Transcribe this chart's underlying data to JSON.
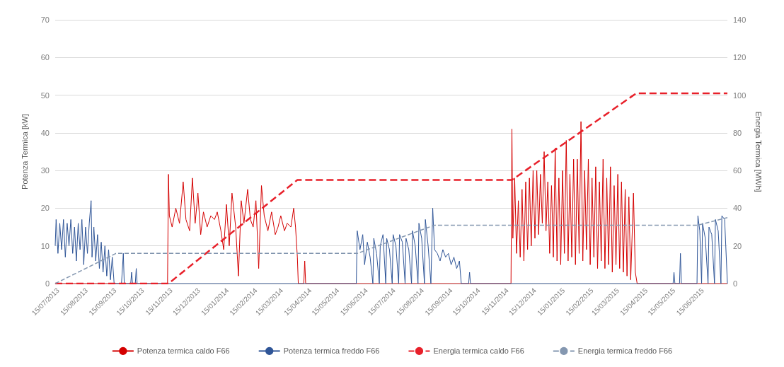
{
  "chart_data": {
    "type": "line",
    "ylabel": "Potenza Termica [kW]",
    "y2label": "Energia Termica [MWh]",
    "xlim": [
      "2013-07-12",
      "2015-07-12"
    ],
    "xticks": [
      {
        "value": "2013-07-15",
        "label": "15/07/2013"
      },
      {
        "value": "2013-08-15",
        "label": "15/08/2013"
      },
      {
        "value": "2013-09-15",
        "label": "15/09/2013"
      },
      {
        "value": "2013-10-15",
        "label": "15/10/2013"
      },
      {
        "value": "2013-11-15",
        "label": "15/11/2013"
      },
      {
        "value": "2013-12-15",
        "label": "15/12/2013"
      },
      {
        "value": "2014-01-15",
        "label": "15/01/2014"
      },
      {
        "value": "2014-02-15",
        "label": "15/02/2014"
      },
      {
        "value": "2014-03-15",
        "label": "15/03/2014"
      },
      {
        "value": "2014-04-15",
        "label": "15/04/2014"
      },
      {
        "value": "2014-05-15",
        "label": "15/05/2014"
      },
      {
        "value": "2014-06-15",
        "label": "15/06/2014"
      },
      {
        "value": "2014-07-15",
        "label": "15/07/2014"
      },
      {
        "value": "2014-08-15",
        "label": "15/08/2014"
      },
      {
        "value": "2014-09-15",
        "label": "15/09/2014"
      },
      {
        "value": "2014-10-15",
        "label": "15/10/2014"
      },
      {
        "value": "2014-11-15",
        "label": "15/11/2014"
      },
      {
        "value": "2014-12-15",
        "label": "15/12/2014"
      },
      {
        "value": "2015-01-15",
        "label": "15/01/2015"
      },
      {
        "value": "2015-02-15",
        "label": "15/02/2015"
      },
      {
        "value": "2015-03-15",
        "label": "15/03/2015"
      },
      {
        "value": "2015-04-15",
        "label": "15/04/2015"
      },
      {
        "value": "2015-05-15",
        "label": "15/05/2015"
      },
      {
        "value": "2015-06-15",
        "label": "15/06/2015"
      }
    ],
    "ylim": [
      0,
      70
    ],
    "yticks": [
      0,
      10,
      20,
      30,
      40,
      50,
      60,
      70
    ],
    "y2lim": [
      0,
      140
    ],
    "y2ticks": [
      0,
      20,
      40,
      60,
      80,
      100,
      120,
      140
    ],
    "grid": "y",
    "legend": "bottom",
    "marker": "none",
    "series": [
      {
        "name": "Potenza termica caldo F66",
        "color": "#d40000",
        "line_style": "solid",
        "x": [
          "2013-07-12",
          "2013-11-11",
          "2013-11-12",
          "2013-11-13",
          "2013-11-16",
          "2013-11-20",
          "2013-11-24",
          "2013-11-28",
          "2013-12-01",
          "2013-12-05",
          "2013-12-08",
          "2013-12-11",
          "2013-12-14",
          "2013-12-17",
          "2013-12-20",
          "2013-12-24",
          "2013-12-28",
          "2014-01-01",
          "2014-01-04",
          "2014-01-08",
          "2014-01-11",
          "2014-01-14",
          "2014-01-17",
          "2014-01-20",
          "2014-01-24",
          "2014-01-27",
          "2014-01-30",
          "2014-02-02",
          "2014-02-06",
          "2014-02-09",
          "2014-02-12",
          "2014-02-15",
          "2014-02-18",
          "2014-02-21",
          "2014-02-24",
          "2014-02-28",
          "2014-03-04",
          "2014-03-08",
          "2014-03-11",
          "2014-03-14",
          "2014-03-18",
          "2014-03-21",
          "2014-03-25",
          "2014-03-28",
          "2014-03-30",
          "2014-04-01",
          "2014-04-02",
          "2014-04-08",
          "2014-04-09",
          "2014-04-10",
          "2014-11-19",
          "2014-11-20",
          "2014-11-21",
          "2014-11-23",
          "2014-11-25",
          "2014-11-27",
          "2014-11-29",
          "2014-12-01",
          "2014-12-03",
          "2014-12-05",
          "2014-12-07",
          "2014-12-09",
          "2014-12-11",
          "2014-12-13",
          "2014-12-15",
          "2014-12-17",
          "2014-12-19",
          "2014-12-21",
          "2014-12-23",
          "2014-12-25",
          "2014-12-27",
          "2014-12-29",
          "2014-12-31",
          "2015-01-02",
          "2015-01-04",
          "2015-01-06",
          "2015-01-08",
          "2015-01-10",
          "2015-01-12",
          "2015-01-14",
          "2015-01-16",
          "2015-01-18",
          "2015-01-20",
          "2015-01-22",
          "2015-01-24",
          "2015-01-26",
          "2015-01-28",
          "2015-01-30",
          "2015-02-01",
          "2015-02-03",
          "2015-02-05",
          "2015-02-07",
          "2015-02-09",
          "2015-02-11",
          "2015-02-13",
          "2015-02-15",
          "2015-02-17",
          "2015-02-19",
          "2015-02-21",
          "2015-02-23",
          "2015-02-25",
          "2015-02-27",
          "2015-03-01",
          "2015-03-03",
          "2015-03-05",
          "2015-03-07",
          "2015-03-09",
          "2015-03-11",
          "2015-03-13",
          "2015-03-15",
          "2015-03-17",
          "2015-03-19",
          "2015-03-21",
          "2015-03-23",
          "2015-03-25",
          "2015-03-27",
          "2015-03-29",
          "2015-04-01",
          "2015-04-03",
          "2015-04-05",
          "2015-07-12"
        ],
        "values": [
          0,
          0,
          29,
          18,
          15,
          20,
          16,
          27,
          17,
          14,
          28,
          16,
          24,
          13,
          19,
          15,
          18,
          17,
          19,
          14,
          9,
          21,
          10,
          24,
          15,
          2,
          22,
          16,
          25,
          17,
          15,
          22,
          4,
          26,
          18,
          14,
          19,
          13,
          15,
          18,
          14,
          16,
          15,
          20,
          15,
          7,
          0,
          0,
          6,
          0,
          0,
          41,
          12,
          28,
          8,
          22,
          7,
          25,
          6,
          27,
          9,
          28,
          10,
          30,
          12,
          30,
          13,
          29,
          16,
          35,
          14,
          27,
          8,
          26,
          7,
          36,
          6,
          28,
          5,
          30,
          8,
          38,
          6,
          29,
          7,
          33,
          5,
          33,
          8,
          43,
          6,
          30,
          9,
          33,
          5,
          28,
          7,
          31,
          4,
          27,
          6,
          33,
          4,
          28,
          5,
          31,
          3,
          26,
          5,
          29,
          4,
          27,
          3,
          25,
          2,
          23,
          1,
          24,
          3,
          0,
          0
        ]
      },
      {
        "name": "Potenza termica freddo F66",
        "color": "#2f5597",
        "line_style": "solid",
        "x": [
          "2013-07-12",
          "2013-07-13",
          "2013-07-15",
          "2013-07-17",
          "2013-07-19",
          "2013-07-21",
          "2013-07-23",
          "2013-07-25",
          "2013-07-27",
          "2013-07-29",
          "2013-07-31",
          "2013-08-02",
          "2013-08-04",
          "2013-08-06",
          "2013-08-08",
          "2013-08-10",
          "2013-08-12",
          "2013-08-14",
          "2013-08-16",
          "2013-08-18",
          "2013-08-20",
          "2013-08-21",
          "2013-08-23",
          "2013-08-25",
          "2013-08-27",
          "2013-08-29",
          "2013-08-31",
          "2013-09-02",
          "2013-09-04",
          "2013-09-06",
          "2013-09-08",
          "2013-09-10",
          "2013-09-12",
          "2013-09-14",
          "2013-09-22",
          "2013-09-24",
          "2013-09-25",
          "2013-10-02",
          "2013-10-03",
          "2013-10-04",
          "2013-10-07",
          "2013-10-08",
          "2013-10-09",
          "2014-06-04",
          "2014-06-05",
          "2014-06-08",
          "2014-06-11",
          "2014-06-13",
          "2014-06-16",
          "2014-06-19",
          "2014-06-22",
          "2014-06-23",
          "2014-06-26",
          "2014-06-29",
          "2014-06-30",
          "2014-07-03",
          "2014-07-06",
          "2014-07-07",
          "2014-07-10",
          "2014-07-13",
          "2014-07-14",
          "2014-07-17",
          "2014-07-20",
          "2014-07-21",
          "2014-07-24",
          "2014-07-27",
          "2014-07-28",
          "2014-07-31",
          "2014-08-03",
          "2014-08-04",
          "2014-08-07",
          "2014-08-10",
          "2014-08-11",
          "2014-08-14",
          "2014-08-17",
          "2014-08-18",
          "2014-08-21",
          "2014-08-24",
          "2014-08-26",
          "2014-08-28",
          "2014-08-31",
          "2014-09-03",
          "2014-09-06",
          "2014-09-09",
          "2014-09-12",
          "2014-09-15",
          "2014-09-18",
          "2014-09-21",
          "2014-09-24",
          "2014-09-26",
          "2014-10-04",
          "2014-10-05",
          "2014-10-06",
          "2015-05-14",
          "2015-05-15",
          "2015-05-16",
          "2015-05-21",
          "2015-05-22",
          "2015-05-23",
          "2015-06-09",
          "2015-06-10",
          "2015-06-12",
          "2015-06-14",
          "2015-06-15",
          "2015-06-18",
          "2015-06-21",
          "2015-06-22",
          "2015-06-25",
          "2015-06-28",
          "2015-06-29",
          "2015-07-02",
          "2015-07-05",
          "2015-07-06",
          "2015-07-09",
          "2015-07-12"
        ],
        "values": [
          10,
          17,
          8,
          16,
          9,
          17,
          7,
          16,
          10,
          17,
          8,
          15,
          6,
          16,
          9,
          17,
          5,
          15,
          8,
          16,
          22,
          7,
          15,
          6,
          13,
          4,
          11,
          3,
          10,
          2,
          9,
          1,
          7,
          0,
          0,
          8,
          0,
          0,
          3,
          0,
          0,
          4,
          0,
          0,
          14,
          9,
          13,
          5,
          11,
          7,
          0,
          12,
          8,
          0,
          10,
          13,
          0,
          12,
          9,
          0,
          13,
          10,
          0,
          13,
          11,
          0,
          12,
          9,
          0,
          14,
          10,
          0,
          16,
          12,
          0,
          17,
          10,
          0,
          20,
          9,
          8,
          6,
          9,
          7,
          8,
          5,
          7,
          4,
          6,
          0,
          0,
          3,
          0,
          0,
          3,
          0,
          0,
          8,
          0,
          0,
          18,
          14,
          0,
          16,
          12,
          0,
          15,
          13,
          0,
          17,
          14,
          0,
          18,
          17,
          0
        ]
      },
      {
        "name": "Energia termica caldo F66",
        "color": "#e8202a",
        "line_style": "dashed",
        "axis": "y2",
        "x": [
          "2013-07-12",
          "2013-11-12",
          "2014-04-01",
          "2014-11-20",
          "2015-04-04",
          "2015-07-12"
        ],
        "values": [
          0,
          0,
          55,
          55,
          101,
          101
        ]
      },
      {
        "name": "Energia termica freddo F66",
        "color": "#8497b0",
        "line_style": "dashed",
        "axis": "y2",
        "x": [
          "2013-07-12",
          "2013-09-16",
          "2014-06-05",
          "2014-08-28",
          "2015-06-10",
          "2015-07-12"
        ],
        "values": [
          0,
          16,
          16,
          31,
          31,
          35
        ]
      }
    ]
  }
}
